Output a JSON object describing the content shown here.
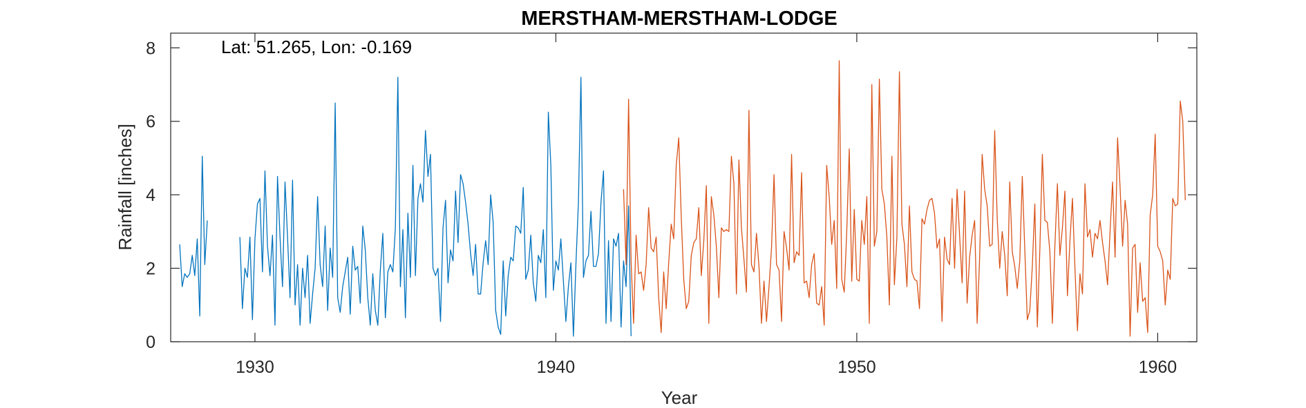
{
  "chart_data": {
    "type": "line",
    "title": "MERSTHAM-MERSTHAM-LODGE",
    "xlabel": "Year",
    "ylabel": "Rainfall [inches]",
    "annotation": "Lat: 51.265, Lon: -0.169",
    "xlim": [
      1927.2,
      1961.3
    ],
    "ylim": [
      0,
      8.4
    ],
    "xticks": [
      1930,
      1940,
      1950,
      1960
    ],
    "yticks": [
      0,
      2,
      4,
      6,
      8
    ],
    "grid": false,
    "colors": {
      "series_1": "#0072BD",
      "series_2": "#D95319",
      "axis": "#262626"
    },
    "series": [
      {
        "start": 1927.5,
        "step": 0.0833333,
        "values": [
          2.65,
          1.5,
          1.85,
          1.75,
          1.85,
          2.35,
          1.8,
          2.8,
          0.7,
          5.05,
          2.1,
          3.3,
          null,
          null,
          null,
          null,
          null,
          null,
          null,
          null,
          null,
          null,
          null,
          null,
          2.85,
          0.9,
          2.0,
          1.75,
          2.85,
          0.6,
          2.8,
          3.75,
          3.9,
          1.9,
          4.65,
          2.6,
          1.8,
          2.9,
          0.45,
          4.5,
          2.85,
          1.5,
          4.35,
          2.85,
          1.2,
          4.4,
          1.0,
          2.1,
          0.45,
          2.0,
          1.2,
          2.35,
          0.5,
          1.3,
          2.0,
          3.95,
          2.1,
          1.5,
          3.15,
          0.85,
          2.55,
          1.75,
          6.5,
          1.2,
          0.8,
          1.5,
          1.9,
          2.3,
          0.75,
          2.6,
          1.95,
          2.05,
          1.05,
          3.15,
          2.5,
          1.2,
          0.45,
          1.85,
          0.85,
          0.45,
          1.95,
          2.95,
          0.65,
          1.9,
          2.1,
          1.9,
          3.1,
          7.2,
          1.5,
          3.05,
          0.65,
          3.5,
          1.75,
          4.8,
          1.8,
          3.9,
          4.3,
          3.8,
          5.75,
          4.5,
          5.1,
          2.0,
          1.8,
          2.0,
          0.55,
          3.1,
          3.85,
          1.6,
          2.5,
          2.2,
          4.1,
          2.7,
          4.55,
          4.3,
          3.8,
          3.2,
          2.4,
          1.8,
          2.65,
          1.3,
          1.3,
          2.15,
          2.75,
          2.1,
          4.0,
          3.25,
          0.85,
          0.4,
          0.2,
          2.2,
          0.7,
          1.8,
          2.3,
          2.2,
          3.15,
          3.1,
          2.95,
          4.2,
          1.7,
          1.95,
          2.9,
          1.6,
          1.1,
          2.35,
          2.15,
          3.05,
          1.2,
          6.25,
          4.8,
          1.4,
          2.2,
          1.95,
          2.8,
          1.65,
          0.55,
          1.5,
          2.15,
          0.15,
          2.1,
          3.8,
          7.2,
          1.75,
          2.2,
          2.35,
          3.55,
          2.05,
          2.05,
          2.4,
          3.8,
          4.65,
          0.5,
          2.75,
          0.55,
          2.8,
          2.6,
          2.95,
          0.4,
          2.2,
          1.5,
          3.7,
          0.15
        ]
      },
      {
        "start": 1942.25,
        "step": 0.0833333,
        "values": [
          4.15,
          2.1,
          6.6,
          2.2,
          0.5,
          2.9,
          1.85,
          1.9,
          1.4,
          2.1,
          3.65,
          2.55,
          2.45,
          2.85,
          1.2,
          0.25,
          1.9,
          0.9,
          2.15,
          3.2,
          2.8,
          4.8,
          5.55,
          3.4,
          1.7,
          0.9,
          1.1,
          2.35,
          2.7,
          2.8,
          3.65,
          1.8,
          2.75,
          4.25,
          0.5,
          3.95,
          3.45,
          2.6,
          1.2,
          3.1,
          3.0,
          3.05,
          3.0,
          5.05,
          4.3,
          1.3,
          4.95,
          3.1,
          2.25,
          1.35,
          6.3,
          2.1,
          1.9,
          2.95,
          2.05,
          0.5,
          1.65,
          0.55,
          1.5,
          2.55,
          4.55,
          2.1,
          1.95,
          0.55,
          3.0,
          2.55,
          1.95,
          5.1,
          2.15,
          2.45,
          2.35,
          4.6,
          1.6,
          1.65,
          1.2,
          2.1,
          2.4,
          1.05,
          1.0,
          1.5,
          0.45,
          4.8,
          3.95,
          2.65,
          3.3,
          1.45,
          7.65,
          1.7,
          1.35,
          3.0,
          5.25,
          1.65,
          3.6,
          1.7,
          1.65,
          3.3,
          2.65,
          3.95,
          0.5,
          7.0,
          2.6,
          3.0,
          7.15,
          4.15,
          3.75,
          2.85,
          1.0,
          5.05,
          1.55,
          2.85,
          7.35,
          3.2,
          2.65,
          1.5,
          3.7,
          1.9,
          1.7,
          1.65,
          0.9,
          3.35,
          3.2,
          3.6,
          3.85,
          3.9,
          3.5,
          2.55,
          2.8,
          0.55,
          2.85,
          2.25,
          2.1,
          3.9,
          2.0,
          4.15,
          2.9,
          1.6,
          4.1,
          1.05,
          2.3,
          2.9,
          3.3,
          0.5,
          2.3,
          5.1,
          4.15,
          3.7,
          2.6,
          2.65,
          5.75,
          3.35,
          2.0,
          3.0,
          2.35,
          1.25,
          4.35,
          2.45,
          2.05,
          1.45,
          2.2,
          4.5,
          2.5,
          0.6,
          0.85,
          2.05,
          3.75,
          0.4,
          2.5,
          5.1,
          3.3,
          3.25,
          2.45,
          0.5,
          2.6,
          4.3,
          2.35,
          3.1,
          4.1,
          1.25,
          2.75,
          3.9,
          2.0,
          0.3,
          1.85,
          1.3,
          4.3,
          2.85,
          3.05,
          2.3,
          2.95,
          2.8,
          3.3,
          2.7,
          2.2,
          1.55,
          3.0,
          4.35,
          2.3,
          5.55,
          4.2,
          2.6,
          3.85,
          3.2,
          0.15,
          2.55,
          2.65,
          0.8,
          2.15,
          1.1,
          1.2,
          0.25,
          3.45,
          4.0,
          5.65,
          2.6,
          2.45,
          2.2,
          1.0,
          1.95,
          1.7,
          3.9,
          3.7,
          3.75,
          6.55,
          6.0,
          3.85
        ]
      }
    ]
  }
}
